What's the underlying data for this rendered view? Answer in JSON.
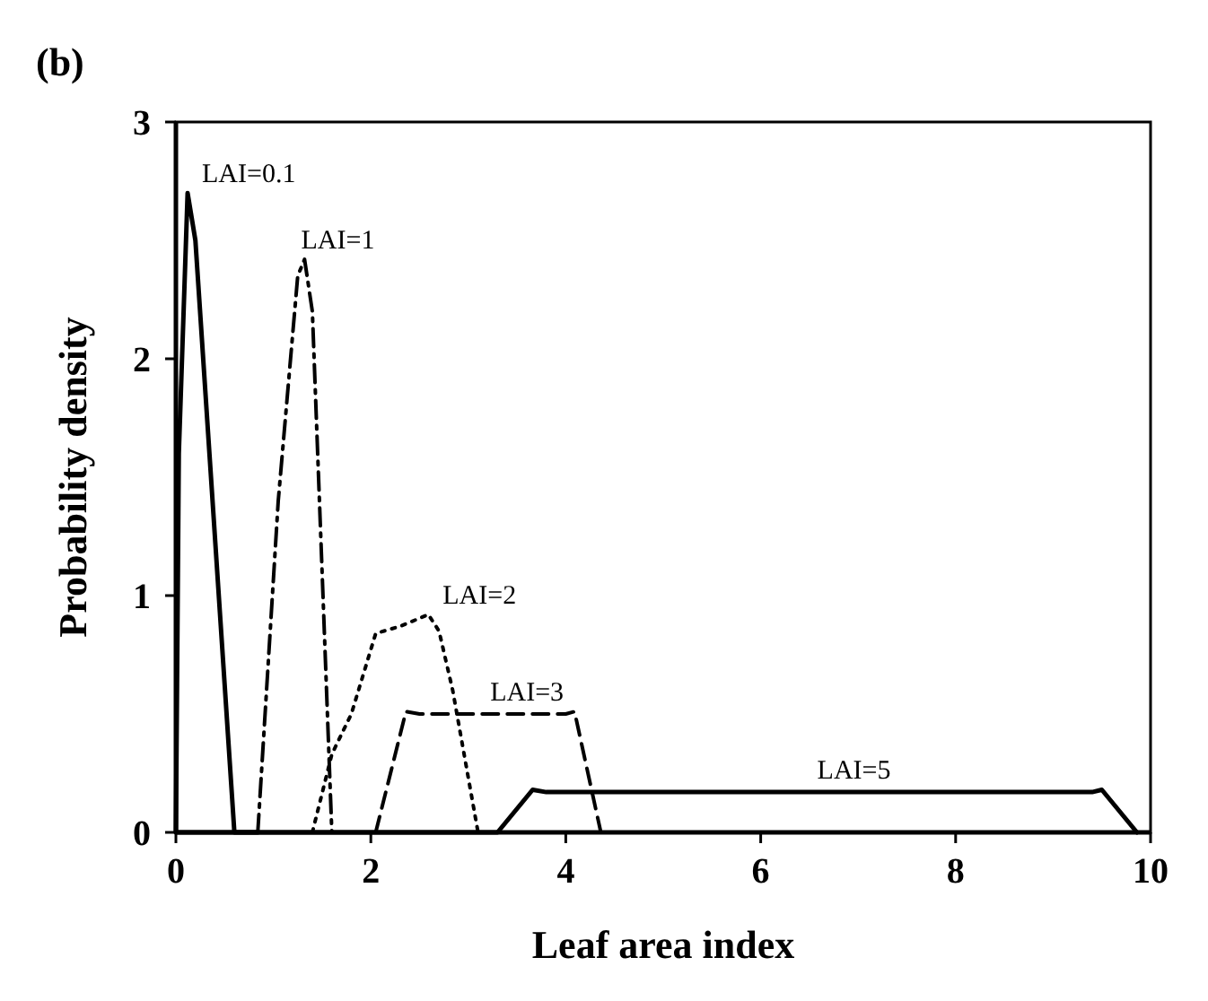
{
  "chart_data": {
    "type": "line",
    "title": "(b)",
    "xlabel": "Leaf area index",
    "ylabel": "Probability density",
    "xlim": [
      0,
      10
    ],
    "ylim": [
      0,
      3
    ],
    "xticks": [
      0,
      2,
      4,
      6,
      8,
      10
    ],
    "yticks": [
      0,
      1,
      2,
      3
    ],
    "grid": false,
    "marker": "none",
    "series": [
      {
        "name": "LAI=0.1",
        "color": "#000000",
        "line_style": "solid",
        "x": [
          0,
          0.03,
          0.12,
          0.2,
          0.6,
          0.84
        ],
        "values": [
          0,
          1.6,
          2.7,
          2.5,
          0,
          0
        ]
      },
      {
        "name": "LAI=1",
        "color": "#000000",
        "line_style": "dashdot",
        "x": [
          0.84,
          1.05,
          1.25,
          1.32,
          1.4,
          1.6,
          1.7
        ],
        "values": [
          0,
          1.4,
          2.35,
          2.42,
          2.2,
          0,
          0
        ]
      },
      {
        "name": "LAI=2",
        "color": "#000000",
        "line_style": "dotted",
        "x": [
          1.4,
          1.6,
          1.8,
          2.05,
          2.3,
          2.59,
          2.7,
          2.84,
          3.1,
          3.3
        ],
        "values": [
          0,
          0.33,
          0.5,
          0.84,
          0.87,
          0.92,
          0.85,
          0.6,
          0,
          0
        ]
      },
      {
        "name": "LAI=3",
        "color": "#000000",
        "line_style": "dashed",
        "x": [
          2.05,
          2.36,
          2.5,
          4,
          4.09,
          4.36,
          4.5
        ],
        "values": [
          0,
          0.51,
          0.5,
          0.5,
          0.51,
          0,
          0
        ]
      },
      {
        "name": "LAI=5",
        "color": "#000000",
        "line_style": "solid",
        "x": [
          0,
          3.1,
          3.3,
          3.66,
          3.8,
          9.4,
          9.5,
          9.86
        ],
        "values": [
          0,
          0,
          0,
          0.18,
          0.17,
          0.17,
          0.18,
          0
        ]
      }
    ]
  }
}
